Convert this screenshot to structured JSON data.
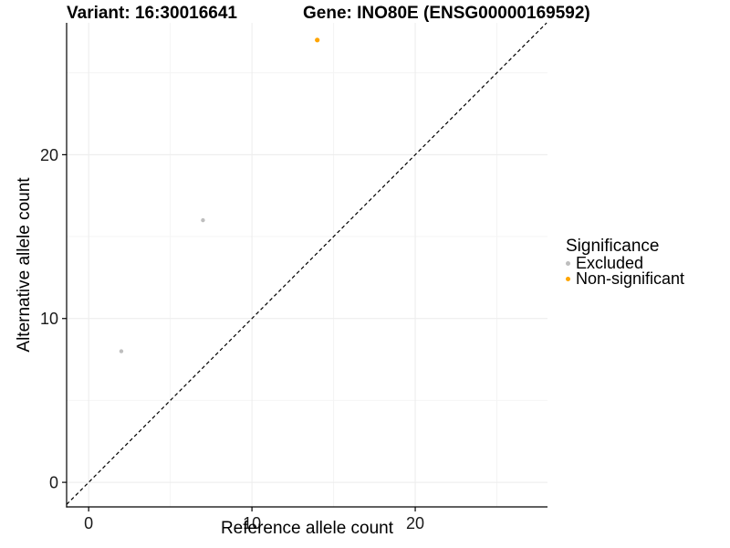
{
  "chart_data": {
    "type": "scatter",
    "title_left": "Variant: 16:30016641",
    "title_right": "Gene: INO80E (ENSG00000169592)",
    "xlabel": "Reference allele count",
    "ylabel": "Alternative allele count",
    "xlim": [
      -1.35,
      28.1
    ],
    "ylim": [
      -1.5,
      28.05
    ],
    "xticks": [
      0,
      10,
      20
    ],
    "yticks": [
      0,
      10,
      20
    ],
    "xticks_minor": [
      5,
      15,
      25
    ],
    "yticks_minor": [
      5,
      15,
      25
    ],
    "grid": true,
    "legend_position": "right",
    "legend": {
      "title": "Significance"
    },
    "identity_line": {
      "slope": 1,
      "intercept": 0,
      "style": "dashed"
    },
    "series": [
      {
        "name": "Excluded",
        "color": "#BEBEBE",
        "point_radius": 2.2,
        "points": [
          [
            2,
            8
          ],
          [
            7,
            16
          ]
        ]
      },
      {
        "name": "Non-significant",
        "color": "#FFA500",
        "point_radius": 2.6,
        "points": [
          [
            14,
            27
          ]
        ]
      }
    ],
    "colors": {
      "grid_major": "#ECECEC",
      "grid_minor": "#F4F4F4",
      "axis": "#000000",
      "identity_line": "#000000",
      "excluded": "#BEBEBE",
      "non_significant": "#FFA500"
    }
  }
}
